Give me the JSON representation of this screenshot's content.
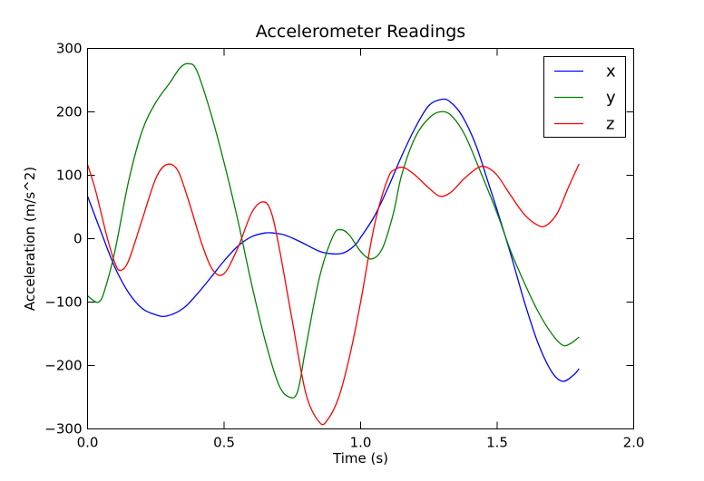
{
  "chart_data": {
    "type": "line",
    "title": "Accelerometer Readings",
    "xlabel": "Time (s)",
    "ylabel": "Acceleration (m/s^2)",
    "xlim": [
      0.0,
      2.0
    ],
    "ylim": [
      -300,
      300
    ],
    "xticks": [
      0.0,
      0.5,
      1.0,
      1.5,
      2.0
    ],
    "xtick_labels": [
      "0.0",
      "0.5",
      "1.0",
      "1.5",
      "2.0"
    ],
    "yticks": [
      -300,
      -200,
      -100,
      0,
      100,
      200,
      300
    ],
    "ytick_labels": [
      "−300",
      "−200",
      "−100",
      "0",
      "100",
      "200",
      "300"
    ],
    "grid": false,
    "legend_position": "top-right",
    "series": [
      {
        "name": "x",
        "color": "#0000ff",
        "x": [
          0.0,
          0.05,
          0.1,
          0.15,
          0.2,
          0.25,
          0.29,
          0.35,
          0.4,
          0.45,
          0.5,
          0.55,
          0.6,
          0.65,
          0.68,
          0.72,
          0.78,
          0.85,
          0.9,
          0.94,
          0.98,
          1.0,
          1.05,
          1.1,
          1.15,
          1.2,
          1.25,
          1.3,
          1.33,
          1.37,
          1.42,
          1.47,
          1.5,
          1.55,
          1.6,
          1.65,
          1.7,
          1.74,
          1.78,
          1.8
        ],
        "y": [
          67,
          10,
          -45,
          -85,
          -110,
          -120,
          -122,
          -110,
          -88,
          -62,
          -35,
          -12,
          3,
          9,
          9,
          6,
          -5,
          -20,
          -24,
          -22,
          -10,
          2,
          35,
          80,
          130,
          175,
          210,
          220,
          215,
          195,
          150,
          85,
          45,
          -25,
          -100,
          -165,
          -210,
          -225,
          -215,
          -205
        ]
      },
      {
        "name": "y",
        "color": "#008000",
        "x": [
          0.0,
          0.02,
          0.04,
          0.06,
          0.1,
          0.15,
          0.2,
          0.25,
          0.3,
          0.34,
          0.37,
          0.4,
          0.45,
          0.5,
          0.55,
          0.6,
          0.65,
          0.7,
          0.74,
          0.77,
          0.8,
          0.85,
          0.9,
          0.93,
          0.96,
          1.0,
          1.04,
          1.08,
          1.12,
          1.15,
          1.2,
          1.25,
          1.29,
          1.33,
          1.38,
          1.43,
          1.5,
          1.55,
          1.6,
          1.65,
          1.7,
          1.74,
          1.77,
          1.8
        ],
        "y": [
          -90,
          -97,
          -100,
          -85,
          -20,
          90,
          170,
          215,
          245,
          270,
          276,
          265,
          200,
          120,
          30,
          -70,
          -160,
          -230,
          -250,
          -240,
          -170,
          -60,
          5,
          14,
          5,
          -20,
          -32,
          -15,
          40,
          100,
          160,
          190,
          200,
          195,
          165,
          115,
          40,
          -20,
          -70,
          -115,
          -150,
          -168,
          -165,
          -155
        ]
      },
      {
        "name": "z",
        "color": "#ff0000",
        "x": [
          0.0,
          0.03,
          0.07,
          0.1,
          0.12,
          0.15,
          0.2,
          0.25,
          0.29,
          0.33,
          0.37,
          0.42,
          0.46,
          0.5,
          0.55,
          0.6,
          0.64,
          0.67,
          0.7,
          0.75,
          0.8,
          0.85,
          0.88,
          0.92,
          0.96,
          1.0,
          1.05,
          1.1,
          1.13,
          1.16,
          1.2,
          1.25,
          1.29,
          1.33,
          1.38,
          1.43,
          1.46,
          1.5,
          1.55,
          1.6,
          1.65,
          1.68,
          1.72,
          1.76,
          1.8
        ],
        "y": [
          117,
          75,
          5,
          -38,
          -50,
          -35,
          30,
          95,
          117,
          108,
          60,
          -10,
          -50,
          -55,
          -15,
          40,
          58,
          45,
          -10,
          -130,
          -245,
          -290,
          -285,
          -250,
          -185,
          -100,
          20,
          95,
          110,
          112,
          100,
          80,
          67,
          73,
          95,
          112,
          113,
          100,
          68,
          38,
          21,
          21,
          40,
          80,
          118
        ]
      }
    ]
  }
}
